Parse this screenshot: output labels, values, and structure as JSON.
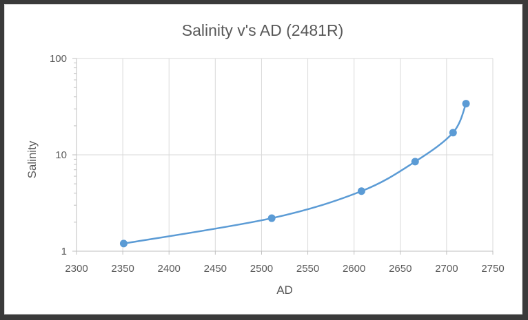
{
  "chart_data": {
    "type": "scatter",
    "title": "Salinity v's AD (2481R)",
    "xlabel": "AD",
    "ylabel": "Salinity",
    "x_ticks": [
      "2300",
      "2350",
      "2400",
      "2450",
      "2500",
      "2550",
      "2600",
      "2650",
      "2700",
      "2750"
    ],
    "y_ticks": [
      "1",
      "10",
      "100"
    ],
    "xlim": [
      2300,
      2750
    ],
    "ylim": [
      1,
      100
    ],
    "y_scale": "log",
    "grid": true,
    "legend": "none",
    "line_style": "smoothed",
    "series": [
      {
        "color": "#5b9bd5",
        "points": [
          {
            "x": 2351,
            "y": 1.2
          },
          {
            "x": 2511,
            "y": 2.2
          },
          {
            "x": 2608,
            "y": 4.2
          },
          {
            "x": 2666,
            "y": 8.5
          },
          {
            "x": 2707,
            "y": 17
          },
          {
            "x": 2721,
            "y": 34
          }
        ]
      }
    ],
    "colors": {
      "grid": "#d9d9d9",
      "axis": "#bfbfbf",
      "text": "#595959"
    }
  }
}
